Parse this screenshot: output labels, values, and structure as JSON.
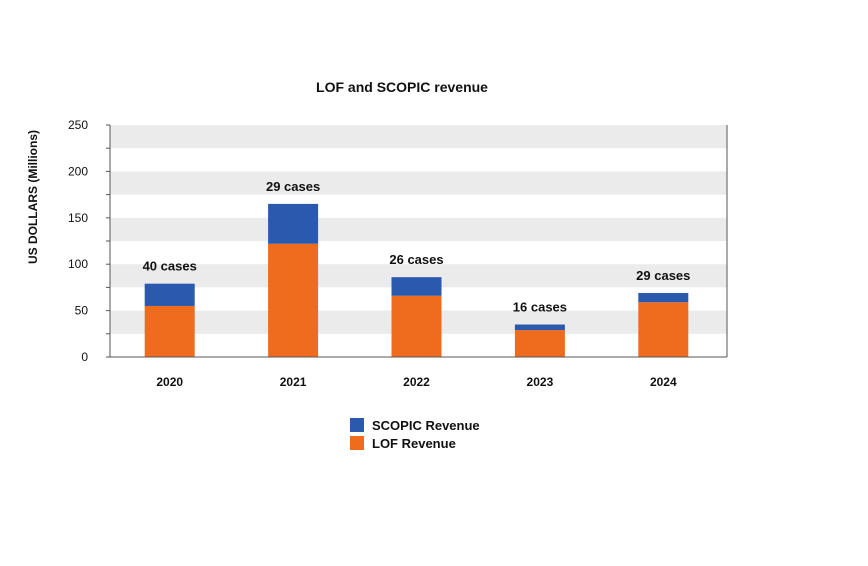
{
  "chart_data": {
    "type": "bar",
    "stacked": true,
    "title": "LOF and SCOPIC revenue",
    "ylabel": "US DOLLARS (Millions)",
    "xlabel": "",
    "ylim": [
      0,
      250
    ],
    "yticks": [
      0,
      50,
      100,
      150,
      200,
      250
    ],
    "categories": [
      "2020",
      "2021",
      "2022",
      "2023",
      "2024"
    ],
    "series": [
      {
        "name": "LOF Revenue",
        "color": "#ef6c1e",
        "values": [
          55,
          122,
          66,
          29,
          59
        ]
      },
      {
        "name": "SCOPIC Revenue",
        "color": "#2b59ad",
        "values": [
          24,
          43,
          20,
          6,
          10
        ]
      }
    ],
    "annotations": [
      "40 cases",
      "29 cases",
      "26 cases",
      "16 cases",
      "29 cases"
    ],
    "legend_order": [
      "SCOPIC Revenue",
      "LOF Revenue"
    ],
    "legend_position": "bottom-center",
    "grid": "alternating horizontal bands"
  }
}
